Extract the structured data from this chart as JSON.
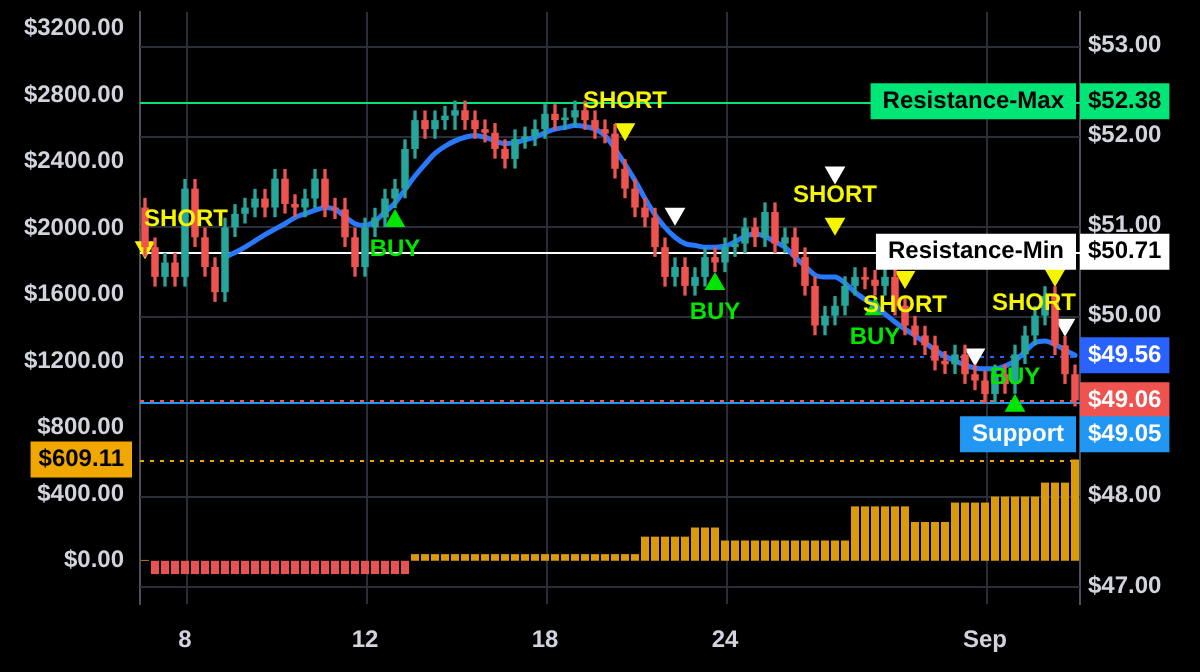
{
  "chart_data": {
    "type": "candlestick",
    "categories": [
      null,
      null,
      null,
      null,
      "8",
      null,
      null,
      null,
      null,
      null,
      null,
      null,
      null,
      null,
      null,
      null,
      null,
      null,
      null,
      null,
      null,
      null,
      "12",
      null,
      null,
      null,
      null,
      null,
      null,
      null,
      null,
      null,
      null,
      null,
      null,
      null,
      null,
      null,
      null,
      null,
      "18",
      null,
      null,
      null,
      null,
      null,
      null,
      null,
      null,
      null,
      null,
      null,
      null,
      null,
      null,
      null,
      null,
      null,
      "24",
      null,
      null,
      null,
      null,
      null,
      null,
      null,
      null,
      null,
      null,
      null,
      null,
      null,
      null,
      null,
      null,
      null,
      null,
      null,
      null,
      null,
      null,
      null,
      null,
      null,
      "Sep",
      null,
      null,
      null,
      null,
      null,
      null,
      null,
      null,
      null
    ],
    "ylim": [
      -260,
      3300
    ],
    "yticks": [
      {
        "value": 0,
        "label": "$0.00"
      },
      {
        "value": 400,
        "label": "$400.00"
      },
      {
        "value": 609.11,
        "label": "$609.11"
      },
      {
        "value": 800,
        "label": "$800.00"
      },
      {
        "value": 1200,
        "label": "$1200.00"
      },
      {
        "value": 1600,
        "label": "$1600.00"
      },
      {
        "value": 2000,
        "label": "$2000.00"
      },
      {
        "value": 2400,
        "label": "$2400.00"
      },
      {
        "value": 2800,
        "label": "$2800.00"
      },
      {
        "value": 3200,
        "label": "$3200.00"
      }
    ],
    "y2lim": [
      46.8,
      53.37
    ],
    "y2ticks": [
      {
        "value": 47,
        "label": "$47.00"
      },
      {
        "value": 48,
        "label": "$48.00"
      },
      {
        "value": 49.06,
        "label": "$49.06"
      },
      {
        "value": 49.56,
        "label": "$49.56"
      },
      {
        "value": 50,
        "label": "$50.00"
      },
      {
        "value": 50.71,
        "label": "$50.71"
      },
      {
        "value": 51,
        "label": "$51.00"
      },
      {
        "value": 52,
        "label": "$52.00"
      },
      {
        "value": 52.38,
        "label": "$52.38"
      },
      {
        "value": 53,
        "label": "$53.00"
      }
    ],
    "grid": true,
    "annotations": [
      "$49.05"
    ],
    "ref_lines": [
      {
        "axis": "y2",
        "value": 52.38,
        "label": "Resistance-Max",
        "color": "#00e676",
        "line_style": "solid"
      },
      {
        "axis": "y2",
        "value": 50.71,
        "label": "Resistance-Min",
        "color": "#ffffff",
        "line_style": "solid"
      },
      {
        "axis": "y2",
        "value": 49.56,
        "label": null,
        "color": "#2962ff",
        "line_style": "dotted"
      },
      {
        "axis": "y2",
        "value": 49.06,
        "label": null,
        "color": "#ef5350",
        "line_style": "dotted"
      },
      {
        "axis": "y2",
        "value": 49.05,
        "label": "Support",
        "color": "#2196f3",
        "line_style": "solid"
      },
      {
        "axis": "y",
        "value": 609.11,
        "label": null,
        "color": "#f0a800",
        "line_style": "dotted"
      }
    ],
    "series": [
      {
        "type": "bar",
        "axis": "y",
        "values": [
          5,
          -80,
          -80,
          -80,
          -80,
          -80,
          -80,
          -80,
          -80,
          -80,
          -80,
          -80,
          -80,
          -80,
          -80,
          -80,
          -80,
          -80,
          -80,
          -80,
          -80,
          -80,
          -80,
          -80,
          -80,
          -80,
          -80,
          40,
          40,
          40,
          40,
          40,
          40,
          40,
          40,
          40,
          40,
          40,
          40,
          40,
          40,
          40,
          40,
          40,
          40,
          40,
          40,
          40,
          40,
          40,
          145,
          145,
          145,
          145,
          145,
          200,
          200,
          200,
          122,
          122,
          122,
          122,
          122,
          122,
          122,
          122,
          122,
          122,
          122,
          122,
          122,
          327,
          327,
          327,
          327,
          327,
          327,
          233,
          233,
          233,
          233,
          350,
          350,
          350,
          350,
          386,
          386,
          386,
          386,
          386,
          470,
          470,
          470,
          609.11
        ],
        "colors": [
          "#d99a0b",
          "#e55353",
          "#e55353",
          "#e55353",
          "#e55353",
          "#e55353",
          "#e55353",
          "#e55353",
          "#e55353",
          "#e55353",
          "#e55353",
          "#e55353",
          "#e55353",
          "#e55353",
          "#e55353",
          "#e55353",
          "#e55353",
          "#e55353",
          "#e55353",
          "#e55353",
          "#e55353",
          "#e55353",
          "#e55353",
          "#e55353",
          "#e55353",
          "#e55353",
          "#e55353",
          "#d99a0b",
          "#d99a0b",
          "#d99a0b",
          "#d99a0b",
          "#d99a0b",
          "#d99a0b",
          "#d99a0b",
          "#d99a0b",
          "#d99a0b",
          "#d99a0b",
          "#d99a0b",
          "#d99a0b",
          "#d99a0b",
          "#d99a0b",
          "#d99a0b",
          "#d99a0b",
          "#d99a0b",
          "#d99a0b",
          "#d99a0b",
          "#d99a0b",
          "#d99a0b",
          "#d99a0b",
          "#d99a0b",
          "#d99a0b",
          "#d99a0b",
          "#d99a0b",
          "#d99a0b",
          "#d99a0b",
          "#d99a0b",
          "#d99a0b",
          "#d99a0b",
          "#d99a0b",
          "#d99a0b",
          "#d99a0b",
          "#d99a0b",
          "#d99a0b",
          "#d99a0b",
          "#d99a0b",
          "#d99a0b",
          "#d99a0b",
          "#d99a0b",
          "#d99a0b",
          "#d99a0b",
          "#d99a0b",
          "#d99a0b",
          "#d99a0b",
          "#d99a0b",
          "#d99a0b",
          "#d99a0b",
          "#d99a0b",
          "#d99a0b",
          "#d99a0b",
          "#d99a0b",
          "#d99a0b",
          "#d99a0b",
          "#d99a0b",
          "#d99a0b",
          "#d99a0b",
          "#d99a0b",
          "#d99a0b",
          "#d99a0b",
          "#d99a0b",
          "#d99a0b",
          "#d99a0b",
          "#d99a0b",
          "#d99a0b",
          "#d99a0b"
        ]
      },
      {
        "axis": "y2",
        "ohlc": [
          [
            51.2,
            51.3,
            50.66,
            50.76
          ],
          [
            50.76,
            50.86,
            50.33,
            50.43
          ],
          [
            50.43,
            50.69,
            50.33,
            50.59
          ],
          [
            50.59,
            50.69,
            50.33,
            50.43
          ],
          [
            50.43,
            51.51,
            50.33,
            51.41
          ],
          [
            51.41,
            51.51,
            50.77,
            50.87
          ],
          [
            50.87,
            50.97,
            50.44,
            50.54
          ],
          [
            50.54,
            50.64,
            50.16,
            50.26
          ],
          [
            50.26,
            51.08,
            50.16,
            50.98
          ],
          [
            50.98,
            51.23,
            50.88,
            51.13
          ],
          [
            51.13,
            51.3,
            51.03,
            51.2
          ],
          [
            51.2,
            51.4,
            51.1,
            51.3
          ],
          [
            51.3,
            51.4,
            51.1,
            51.2
          ],
          [
            51.2,
            51.62,
            51.1,
            51.52
          ],
          [
            51.52,
            51.62,
            51.14,
            51.24
          ],
          [
            51.24,
            51.34,
            51.1,
            51.2
          ],
          [
            51.2,
            51.4,
            51.1,
            51.3
          ],
          [
            51.3,
            51.62,
            51.2,
            51.52
          ],
          [
            51.52,
            51.62,
            51.1,
            51.2
          ],
          [
            51.2,
            51.3,
            51.08,
            51.18
          ],
          [
            51.18,
            51.3,
            50.77,
            50.87
          ],
          [
            50.87,
            50.97,
            50.44,
            50.54
          ],
          [
            50.54,
            51.08,
            50.44,
            50.98
          ],
          [
            50.98,
            51.19,
            50.88,
            51.09
          ],
          [
            51.09,
            51.4,
            50.99,
            51.3
          ],
          [
            51.3,
            51.51,
            51.2,
            51.41
          ],
          [
            51.41,
            51.95,
            51.31,
            51.85
          ],
          [
            51.85,
            52.27,
            51.75,
            52.17
          ],
          [
            52.17,
            52.27,
            51.97,
            52.07
          ],
          [
            52.07,
            52.27,
            51.97,
            52.17
          ],
          [
            52.17,
            52.32,
            52.07,
            52.22
          ],
          [
            52.22,
            52.38,
            52.07,
            52.28
          ],
          [
            52.28,
            52.38,
            52.07,
            52.17
          ],
          [
            52.17,
            52.27,
            51.97,
            52.07
          ],
          [
            52.07,
            52.17,
            51.93,
            52.03
          ],
          [
            52.03,
            52.13,
            51.75,
            51.85
          ],
          [
            51.85,
            51.95,
            51.64,
            51.74
          ],
          [
            51.74,
            52.06,
            51.64,
            51.96
          ],
          [
            51.96,
            52.09,
            51.86,
            51.99
          ],
          [
            51.99,
            52.17,
            51.89,
            52.07
          ],
          [
            52.07,
            52.34,
            51.97,
            52.24
          ],
          [
            52.24,
            52.34,
            52.07,
            52.17
          ],
          [
            52.17,
            52.3,
            52.07,
            52.2
          ],
          [
            52.2,
            52.38,
            52.1,
            52.28
          ],
          [
            52.28,
            52.38,
            52.07,
            52.17
          ],
          [
            52.17,
            52.27,
            51.97,
            52.07
          ],
          [
            52.07,
            52.17,
            51.92,
            52.02
          ],
          [
            52.02,
            52.12,
            51.53,
            51.63
          ],
          [
            51.63,
            51.73,
            51.31,
            51.41
          ],
          [
            51.41,
            51.51,
            51.1,
            51.2
          ],
          [
            51.2,
            51.3,
            50.99,
            51.09
          ],
          [
            51.09,
            51.19,
            50.66,
            50.76
          ],
          [
            50.76,
            50.86,
            50.33,
            50.43
          ],
          [
            50.43,
            50.64,
            50.33,
            50.54
          ],
          [
            50.54,
            50.64,
            50.23,
            50.33
          ],
          [
            50.33,
            50.53,
            50.23,
            50.43
          ],
          [
            50.43,
            50.75,
            50.33,
            50.65
          ],
          [
            50.65,
            50.75,
            50.49,
            50.59
          ],
          [
            50.59,
            50.86,
            50.49,
            50.76
          ],
          [
            50.76,
            50.9,
            50.66,
            50.8
          ],
          [
            50.8,
            51.08,
            50.7,
            50.98
          ],
          [
            50.98,
            51.08,
            50.77,
            50.87
          ],
          [
            50.87,
            51.25,
            50.77,
            51.15
          ],
          [
            51.15,
            51.25,
            50.7,
            50.8
          ],
          [
            50.8,
            50.97,
            50.7,
            50.87
          ],
          [
            50.87,
            50.97,
            50.55,
            50.65
          ],
          [
            50.65,
            50.75,
            50.23,
            50.33
          ],
          [
            50.33,
            50.43,
            49.79,
            49.89
          ],
          [
            49.89,
            50.1,
            49.79,
            50.0
          ],
          [
            50.0,
            50.21,
            49.9,
            50.11
          ],
          [
            50.11,
            50.43,
            50.01,
            50.33
          ],
          [
            50.33,
            50.53,
            50.23,
            50.43
          ],
          [
            50.43,
            50.53,
            50.3,
            50.4
          ],
          [
            50.4,
            50.5,
            50.23,
            50.33
          ],
          [
            50.33,
            50.53,
            50.23,
            50.43
          ],
          [
            50.43,
            50.53,
            50.01,
            50.11
          ],
          [
            50.11,
            50.21,
            49.79,
            49.89
          ],
          [
            49.89,
            49.99,
            49.68,
            49.78
          ],
          [
            49.78,
            49.88,
            49.57,
            49.67
          ],
          [
            49.67,
            49.77,
            49.4,
            49.5
          ],
          [
            49.5,
            49.6,
            49.36,
            49.46
          ],
          [
            49.46,
            49.67,
            49.36,
            49.57
          ],
          [
            49.57,
            49.67,
            49.25,
            49.35
          ],
          [
            49.35,
            49.45,
            49.18,
            49.28
          ],
          [
            49.28,
            49.38,
            49.03,
            49.13
          ],
          [
            49.13,
            49.45,
            49.03,
            49.35
          ],
          [
            49.35,
            49.45,
            49.14,
            49.24
          ],
          [
            49.24,
            49.67,
            49.14,
            49.57
          ],
          [
            49.57,
            49.88,
            49.47,
            49.78
          ],
          [
            49.78,
            50.1,
            49.68,
            50.0
          ],
          [
            50.0,
            50.32,
            49.9,
            50.22
          ],
          [
            50.22,
            50.32,
            49.57,
            49.67
          ],
          [
            49.67,
            49.77,
            49.25,
            49.35
          ],
          [
            49.35,
            49.45,
            49.0,
            49.06
          ]
        ],
        "colors": [
          "#ef5350",
          "#ef5350",
          "#26a69a",
          "#ef5350",
          "#26a69a",
          "#ef5350",
          "#ef5350",
          "#ef5350",
          "#26a69a",
          "#26a69a",
          "#26a69a",
          "#26a69a",
          "#ef5350",
          "#26a69a",
          "#ef5350",
          "#ef5350",
          "#26a69a",
          "#26a69a",
          "#ef5350",
          "#ef5350",
          "#ef5350",
          "#ef5350",
          "#26a69a",
          "#26a69a",
          "#26a69a",
          "#26a69a",
          "#26a69a",
          "#26a69a",
          "#ef5350",
          "#26a69a",
          "#26a69a",
          "#26a69a",
          "#ef5350",
          "#ef5350",
          "#ef5350",
          "#ef5350",
          "#ef5350",
          "#26a69a",
          "#26a69a",
          "#26a69a",
          "#26a69a",
          "#ef5350",
          "#26a69a",
          "#26a69a",
          "#ef5350",
          "#ef5350",
          "#ef5350",
          "#ef5350",
          "#ef5350",
          "#ef5350",
          "#ef5350",
          "#ef5350",
          "#ef5350",
          "#26a69a",
          "#ef5350",
          "#26a69a",
          "#26a69a",
          "#ef5350",
          "#26a69a",
          "#26a69a",
          "#26a69a",
          "#ef5350",
          "#26a69a",
          "#ef5350",
          "#26a69a",
          "#ef5350",
          "#ef5350",
          "#ef5350",
          "#26a69a",
          "#26a69a",
          "#26a69a",
          "#26a69a",
          "#ef5350",
          "#ef5350",
          "#26a69a",
          "#ef5350",
          "#ef5350",
          "#ef5350",
          "#ef5350",
          "#ef5350",
          "#ef5350",
          "#26a69a",
          "#ef5350",
          "#ef5350",
          "#ef5350",
          "#26a69a",
          "#ef5350",
          "#26a69a",
          "#26a69a",
          "#26a69a",
          "#26a69a",
          "#ef5350",
          "#ef5350",
          "#ef5350"
        ]
      },
      {
        "type": "line",
        "axis": "y2",
        "color": "#2979ff",
        "line_style": "solid",
        "values": [
          null,
          null,
          null,
          null,
          null,
          null,
          null,
          null,
          50.65,
          50.7,
          50.76,
          50.83,
          50.9,
          50.96,
          51.02,
          51.09,
          51.13,
          51.17,
          51.2,
          51.18,
          51.1,
          51.02,
          51.0,
          51.05,
          51.15,
          51.25,
          51.4,
          51.55,
          51.68,
          51.8,
          51.88,
          51.94,
          51.98,
          52.0,
          51.98,
          51.94,
          51.91,
          51.92,
          51.95,
          51.98,
          52.03,
          52.07,
          52.09,
          52.11,
          52.1,
          52.07,
          52.0,
          51.85,
          51.68,
          51.5,
          51.3,
          51.12,
          50.98,
          50.87,
          50.8,
          50.78,
          50.76,
          50.76,
          50.77,
          50.82,
          50.88,
          50.91,
          50.88,
          50.82,
          50.76,
          50.65,
          50.55,
          50.45,
          50.43,
          50.43,
          50.36,
          50.26,
          50.18,
          50.11,
          50.02,
          49.93,
          49.85,
          49.78,
          49.7,
          49.62,
          49.55,
          49.5,
          49.45,
          49.42,
          49.41,
          49.41,
          49.44,
          49.5,
          49.6,
          49.7,
          49.72,
          49.68,
          49.62,
          49.56
        ]
      },
      {
        "type": "scatter",
        "axis": "y2",
        "name": "BUY",
        "color": "#00e600",
        "marker": "triangle",
        "values": [
          null,
          null,
          null,
          null,
          null,
          null,
          null,
          null,
          null,
          null,
          null,
          null,
          null,
          null,
          null,
          null,
          null,
          null,
          null,
          null,
          null,
          null,
          null,
          null,
          null,
          51.05,
          null,
          null,
          null,
          null,
          null,
          null,
          null,
          null,
          null,
          null,
          null,
          null,
          null,
          null,
          null,
          null,
          null,
          null,
          null,
          null,
          null,
          null,
          null,
          null,
          null,
          null,
          null,
          null,
          null,
          null,
          null,
          50.35,
          null,
          null,
          null,
          null,
          null,
          null,
          null,
          null,
          null,
          null,
          null,
          null,
          null,
          null,
          null,
          50.07,
          null,
          null,
          null,
          null,
          null,
          null,
          null,
          null,
          null,
          null,
          null,
          null,
          null,
          49.0,
          null,
          null,
          null,
          null,
          null,
          null
        ]
      },
      {
        "type": "scatter",
        "axis": "y2",
        "name": "SHORT",
        "color": "#f5f500",
        "marker": "triangle",
        "values": [
          50.76,
          null,
          null,
          null,
          null,
          null,
          null,
          null,
          null,
          null,
          null,
          null,
          null,
          null,
          null,
          null,
          null,
          null,
          null,
          null,
          null,
          null,
          null,
          null,
          null,
          null,
          null,
          null,
          null,
          null,
          null,
          null,
          null,
          null,
          null,
          null,
          null,
          null,
          null,
          null,
          null,
          null,
          null,
          null,
          null,
          null,
          null,
          null,
          52.07,
          null,
          null,
          null,
          null,
          null,
          null,
          null,
          null,
          null,
          null,
          null,
          null,
          null,
          null,
          null,
          null,
          null,
          null,
          null,
          null,
          51.02,
          null,
          null,
          null,
          null,
          null,
          null,
          50.43,
          null,
          null,
          null,
          null,
          null,
          null,
          null,
          null,
          null,
          null,
          null,
          null,
          null,
          null,
          50.45,
          null,
          null
        ]
      },
      {
        "type": "scatter",
        "axis": "y2",
        "color": "#ffffff",
        "marker": "triangle",
        "values": [
          null,
          null,
          null,
          null,
          null,
          null,
          null,
          null,
          null,
          null,
          null,
          null,
          null,
          null,
          null,
          null,
          null,
          null,
          null,
          null,
          null,
          null,
          null,
          null,
          null,
          null,
          null,
          null,
          null,
          null,
          null,
          null,
          null,
          null,
          null,
          null,
          null,
          null,
          null,
          null,
          null,
          null,
          null,
          null,
          null,
          null,
          null,
          null,
          null,
          null,
          null,
          null,
          null,
          51.13,
          null,
          null,
          null,
          null,
          null,
          null,
          null,
          null,
          null,
          null,
          null,
          null,
          null,
          null,
          null,
          51.59,
          null,
          null,
          null,
          null,
          null,
          null,
          null,
          null,
          null,
          null,
          null,
          null,
          null,
          49.57,
          null,
          null,
          null,
          null,
          null,
          null,
          null,
          null,
          49.9,
          null
        ]
      }
    ]
  }
}
